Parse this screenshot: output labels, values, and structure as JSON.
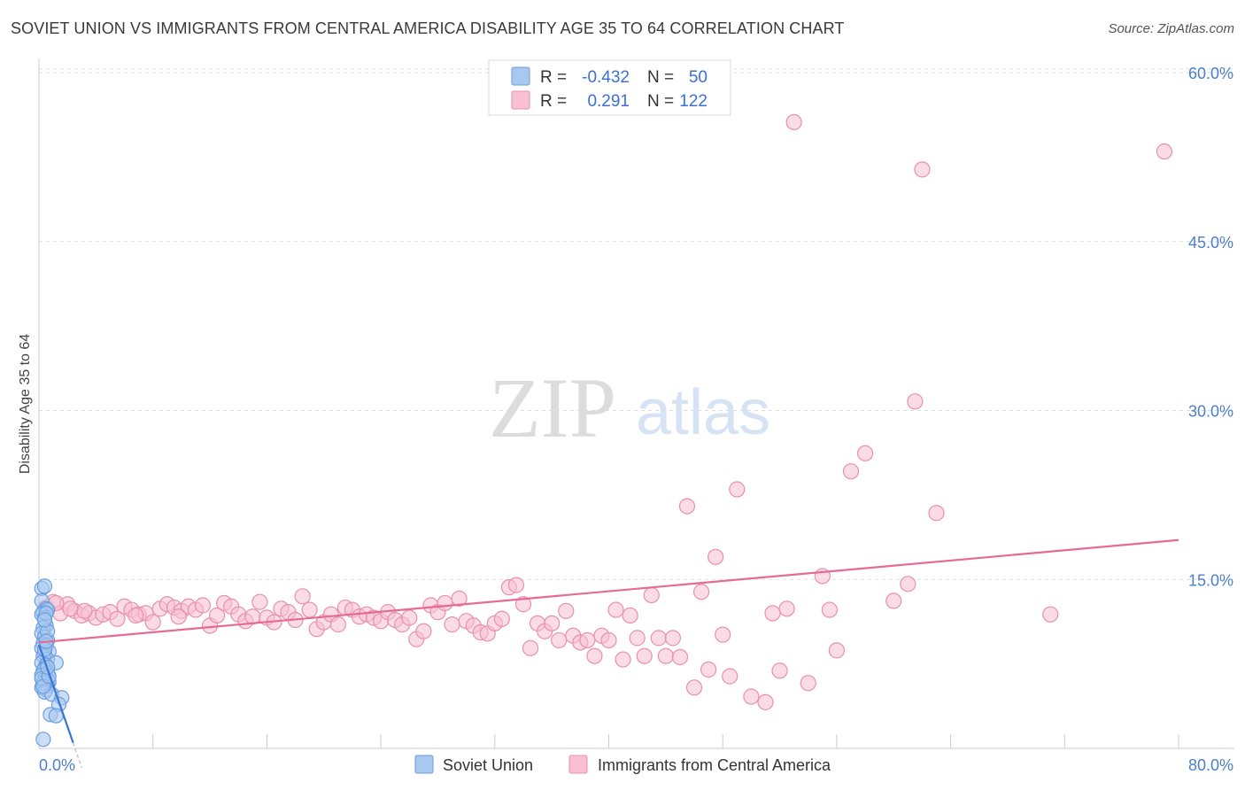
{
  "header": {
    "title": "SOVIET UNION VS IMMIGRANTS FROM CENTRAL AMERICA DISABILITY AGE 35 TO 64 CORRELATION CHART",
    "source": "Source: ZipAtlas.com"
  },
  "watermark": {
    "zip": "ZIP",
    "atlas": "atlas"
  },
  "legend": {
    "r_label": "R =",
    "n_label": "N =",
    "rows": [
      {
        "r": "-0.432",
        "n": "50",
        "color": "#a8c8f0",
        "stroke": "#6a9ee0"
      },
      {
        "r": "0.291",
        "n": "122",
        "color": "#f8c0d0",
        "stroke": "#e890ac"
      }
    ]
  },
  "bottom_legend": [
    "Soviet Union",
    "Immigrants from Central America"
  ],
  "chart_data": {
    "type": "scatter",
    "title": "SOVIET UNION VS IMMIGRANTS FROM CENTRAL AMERICA DISABILITY AGE 35 TO 64 CORRELATION CHART",
    "ylabel": "Disability Age 35 to 64",
    "xlim": [
      0,
      80
    ],
    "ylim": [
      0,
      60
    ],
    "x_tick_labels": [
      "0.0%",
      "80.0%"
    ],
    "y_ticks": [
      15,
      30,
      45,
      60
    ],
    "y_tick_labels": [
      "15.0%",
      "30.0%",
      "45.0%",
      "60.0%"
    ],
    "grid": true,
    "legend_position": "top-center",
    "series": [
      {
        "name": "Soviet Union",
        "color": "#a8c8f0",
        "stroke": "#6a9ee0",
        "trend": {
          "x": [
            0.0,
            2.4
          ],
          "y": [
            9.2,
            0.5
          ],
          "color": "#3a74d4"
        },
        "points": [
          [
            0.2,
            14.2
          ],
          [
            0.4,
            14.4
          ],
          [
            0.2,
            13.1
          ],
          [
            0.5,
            12.4
          ],
          [
            0.3,
            12.1
          ],
          [
            0.6,
            12.3
          ],
          [
            0.2,
            11.9
          ],
          [
            0.4,
            11.6
          ],
          [
            0.5,
            10.9
          ],
          [
            0.3,
            10.7
          ],
          [
            0.2,
            10.2
          ],
          [
            0.4,
            9.9
          ],
          [
            0.6,
            9.6
          ],
          [
            0.3,
            9.3
          ],
          [
            0.5,
            9.1
          ],
          [
            0.2,
            8.9
          ],
          [
            0.7,
            8.6
          ],
          [
            0.4,
            8.4
          ],
          [
            0.3,
            8.2
          ],
          [
            0.6,
            7.9
          ],
          [
            0.2,
            7.6
          ],
          [
            0.5,
            7.4
          ],
          [
            1.2,
            7.6
          ],
          [
            0.4,
            7.1
          ],
          [
            0.3,
            6.9
          ],
          [
            0.6,
            6.7
          ],
          [
            0.2,
            6.5
          ],
          [
            0.5,
            6.3
          ],
          [
            0.4,
            6.1
          ],
          [
            0.7,
            5.9
          ],
          [
            0.3,
            5.8
          ],
          [
            0.6,
            5.6
          ],
          [
            0.2,
            5.4
          ],
          [
            0.5,
            5.2
          ],
          [
            0.4,
            5.0
          ],
          [
            0.9,
            4.8
          ],
          [
            1.6,
            4.5
          ],
          [
            1.4,
            3.9
          ],
          [
            0.8,
            3.0
          ],
          [
            1.2,
            2.9
          ],
          [
            0.3,
            0.8
          ],
          [
            0.5,
            12.0
          ],
          [
            0.4,
            8.8
          ],
          [
            0.2,
            6.2
          ],
          [
            0.6,
            10.4
          ],
          [
            0.3,
            5.5
          ],
          [
            0.7,
            6.4
          ],
          [
            0.5,
            9.5
          ],
          [
            0.4,
            11.4
          ],
          [
            0.6,
            7.2
          ]
        ]
      },
      {
        "name": "Immigrants from Central America",
        "color": "#f8c0d0",
        "stroke": "#e890ac",
        "trend": {
          "x": [
            0.0,
            80.0
          ],
          "y": [
            9.4,
            18.5
          ],
          "color": "#e66a96"
        },
        "points": [
          [
            0.5,
            12.5
          ],
          [
            1.0,
            13.0
          ],
          [
            1.5,
            12.0
          ],
          [
            2.0,
            12.8
          ],
          [
            2.5,
            12.2
          ],
          [
            3.0,
            11.8
          ],
          [
            3.5,
            12.0
          ],
          [
            4.0,
            11.6
          ],
          [
            4.5,
            11.9
          ],
          [
            5.0,
            12.1
          ],
          [
            5.5,
            11.5
          ],
          [
            6.0,
            12.6
          ],
          [
            6.5,
            12.3
          ],
          [
            7.0,
            11.9
          ],
          [
            7.5,
            12.0
          ],
          [
            8.0,
            11.2
          ],
          [
            8.5,
            12.4
          ],
          [
            9.0,
            12.8
          ],
          [
            9.5,
            12.5
          ],
          [
            10.0,
            12.2
          ],
          [
            10.5,
            12.6
          ],
          [
            11.0,
            12.3
          ],
          [
            11.5,
            12.7
          ],
          [
            12.0,
            10.9
          ],
          [
            12.5,
            11.8
          ],
          [
            13.0,
            12.9
          ],
          [
            13.5,
            12.6
          ],
          [
            14.0,
            11.9
          ],
          [
            14.5,
            11.3
          ],
          [
            15.0,
            11.7
          ],
          [
            15.5,
            13.0
          ],
          [
            16.0,
            11.6
          ],
          [
            16.5,
            11.2
          ],
          [
            17.0,
            12.4
          ],
          [
            17.5,
            12.1
          ],
          [
            18.0,
            11.4
          ],
          [
            18.5,
            13.5
          ],
          [
            19.0,
            12.3
          ],
          [
            19.5,
            10.6
          ],
          [
            20.0,
            11.2
          ],
          [
            20.5,
            11.9
          ],
          [
            21.0,
            11.0
          ],
          [
            21.5,
            12.5
          ],
          [
            22.0,
            12.3
          ],
          [
            22.5,
            11.7
          ],
          [
            23.0,
            11.9
          ],
          [
            23.5,
            11.6
          ],
          [
            24.0,
            11.3
          ],
          [
            24.5,
            12.1
          ],
          [
            25.0,
            11.4
          ],
          [
            25.5,
            11.0
          ],
          [
            26.0,
            11.6
          ],
          [
            26.5,
            9.7
          ],
          [
            27.0,
            10.4
          ],
          [
            27.5,
            12.7
          ],
          [
            28.0,
            12.1
          ],
          [
            28.5,
            12.9
          ],
          [
            29.0,
            11.0
          ],
          [
            29.5,
            13.3
          ],
          [
            30.0,
            11.3
          ],
          [
            30.5,
            10.9
          ],
          [
            31.0,
            10.3
          ],
          [
            31.5,
            10.2
          ],
          [
            32.0,
            11.1
          ],
          [
            32.5,
            11.5
          ],
          [
            33.0,
            14.3
          ],
          [
            33.5,
            14.5
          ],
          [
            34.0,
            12.8
          ],
          [
            34.5,
            8.9
          ],
          [
            35.0,
            11.1
          ],
          [
            35.5,
            10.4
          ],
          [
            36.0,
            11.1
          ],
          [
            36.5,
            9.6
          ],
          [
            37.0,
            12.2
          ],
          [
            37.5,
            10.0
          ],
          [
            38.0,
            9.4
          ],
          [
            38.5,
            9.6
          ],
          [
            39.0,
            8.2
          ],
          [
            39.5,
            10.0
          ],
          [
            40.0,
            9.6
          ],
          [
            40.5,
            12.3
          ],
          [
            41.0,
            7.9
          ],
          [
            41.5,
            11.8
          ],
          [
            42.0,
            9.8
          ],
          [
            42.5,
            8.2
          ],
          [
            43.0,
            13.6
          ],
          [
            43.5,
            9.8
          ],
          [
            44.0,
            8.2
          ],
          [
            44.5,
            9.8
          ],
          [
            45.0,
            8.1
          ],
          [
            45.5,
            21.5
          ],
          [
            46.0,
            5.4
          ],
          [
            46.5,
            13.9
          ],
          [
            47.0,
            7.0
          ],
          [
            47.5,
            17.0
          ],
          [
            48.0,
            10.1
          ],
          [
            48.5,
            6.4
          ],
          [
            49.0,
            23.0
          ],
          [
            50.0,
            4.6
          ],
          [
            51.0,
            4.1
          ],
          [
            51.5,
            12.0
          ],
          [
            52.0,
            6.9
          ],
          [
            52.5,
            12.4
          ],
          [
            53.0,
            55.6
          ],
          [
            54.0,
            5.8
          ],
          [
            55.0,
            15.3
          ],
          [
            55.5,
            12.3
          ],
          [
            56.0,
            8.7
          ],
          [
            57.0,
            24.6
          ],
          [
            58.0,
            26.2
          ],
          [
            60.0,
            13.1
          ],
          [
            61.0,
            14.6
          ],
          [
            61.5,
            30.8
          ],
          [
            62.0,
            51.4
          ],
          [
            63.0,
            20.9
          ],
          [
            71.0,
            11.9
          ],
          [
            79.0,
            53.0
          ],
          [
            3.2,
            12.2
          ],
          [
            6.8,
            11.8
          ],
          [
            9.8,
            11.7
          ],
          [
            1.2,
            12.9
          ],
          [
            2.2,
            12.4
          ]
        ]
      }
    ]
  }
}
